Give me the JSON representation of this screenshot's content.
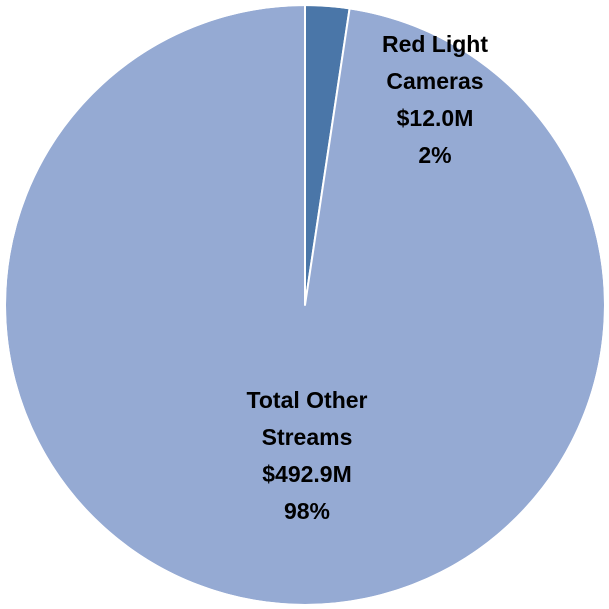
{
  "chart_data": {
    "type": "pie",
    "title": "",
    "slices": [
      {
        "label_lines": [
          "Red Light",
          "Cameras"
        ],
        "value": 12.0,
        "value_label": "$12.0M",
        "percent_label": "2%",
        "color": "#4a76a8"
      },
      {
        "label_lines": [
          "Total Other",
          "Streams"
        ],
        "value": 492.9,
        "value_label": "$492.9M",
        "percent_label": "98%",
        "color": "#95aad3"
      }
    ],
    "start_angle_deg": 0,
    "direction": "clockwise",
    "slice_border_color": "#ffffff",
    "legend": "none"
  }
}
